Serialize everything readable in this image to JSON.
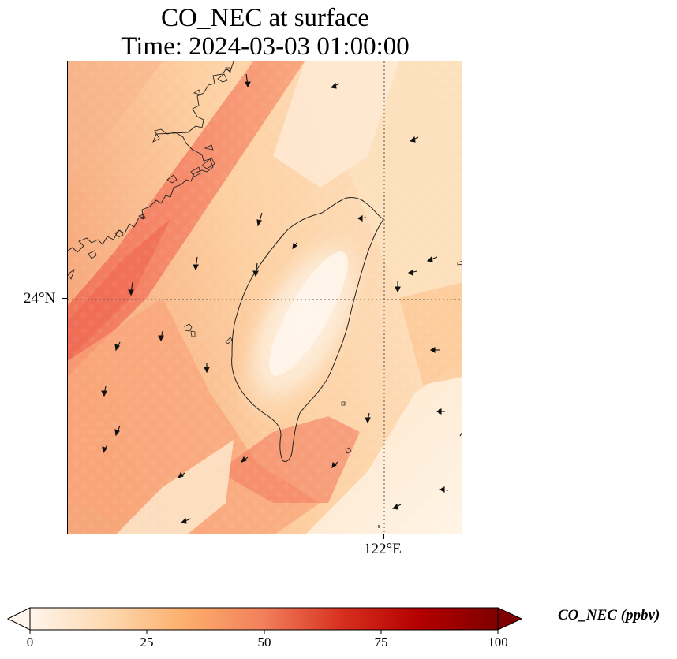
{
  "map": {
    "title_line1": "CO_NEC at surface",
    "title_line2": "Time: 2024-03-03 01:00:00",
    "lat_label": "24°N",
    "lon_label": "122°E",
    "field_colors": {
      "low": "#fff5e8",
      "mid": "#fdcf9e",
      "high": "#f0705a"
    }
  },
  "colorbar": {
    "label": "CO_NEC (ppbv)",
    "ticks": [
      "0",
      "25",
      "50",
      "75",
      "100"
    ],
    "min": 0,
    "max": 100,
    "extend": "both",
    "colormap": [
      "#fff5eb",
      "#fdd8b0",
      "#fdae6b",
      "#f27f5c",
      "#d7301f",
      "#b30000",
      "#7f0000"
    ]
  }
}
